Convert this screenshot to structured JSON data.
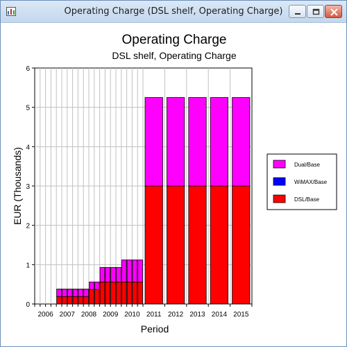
{
  "window": {
    "title": "Operating Charge (DSL shelf, Operating Charge)",
    "app_icon": "chart-app-icon",
    "buttons": [
      "minimize-icon",
      "maximize-icon",
      "close-icon"
    ]
  },
  "colors": {
    "dual": "#ff00ff",
    "wimax": "#0000ff",
    "dsl": "#ff0000",
    "grid": "#c0c0c0"
  },
  "chart_data": {
    "type": "bar",
    "stacked": true,
    "title": "Operating Charge",
    "subtitle": "DSL shelf, Operating Charge",
    "xlabel": "Period",
    "ylabel": "EUR  (Thousands)",
    "ylim": [
      0,
      6
    ],
    "yticks": [
      "0",
      "1",
      "2",
      "3",
      "4",
      "5",
      "6"
    ],
    "grid": true,
    "legend_position": "right",
    "year_labels": [
      "2006",
      "2007",
      "2008",
      "2009",
      "2010",
      "2011",
      "2012",
      "2013",
      "2014",
      "2015"
    ],
    "quarterly_periods": [
      "2006 Q1",
      "2006 Q2",
      "2006 Q3",
      "2006 Q4",
      "2007 Q1",
      "2007 Q2",
      "2007 Q3",
      "2007 Q4",
      "2008 Q1",
      "2008 Q2",
      "2008 Q3",
      "2008 Q4",
      "2009 Q1",
      "2009 Q2",
      "2009 Q3",
      "2009 Q4",
      "2010 Q1",
      "2010 Q2",
      "2010 Q3",
      "2010 Q4"
    ],
    "annual_periods": [
      "2011",
      "2012",
      "2013",
      "2014",
      "2015"
    ],
    "series": [
      {
        "name": "Dual/Base",
        "color": "#ff00ff",
        "quarterly": [
          0,
          0,
          0,
          0,
          0.19,
          0.19,
          0.19,
          0.19,
          0.19,
          0.19,
          0.19,
          0.19,
          0.37,
          0.37,
          0.37,
          0.37,
          0.56,
          0.56,
          0.56,
          0.56
        ],
        "annual": [
          2.25,
          2.25,
          2.25,
          2.25,
          2.25
        ]
      },
      {
        "name": "WiMAX/Base",
        "color": "#0000ff",
        "quarterly": [
          0,
          0,
          0,
          0,
          0,
          0,
          0,
          0,
          0,
          0,
          0,
          0,
          0,
          0,
          0,
          0,
          0,
          0,
          0,
          0
        ],
        "annual": [
          0,
          0,
          0,
          0,
          0
        ]
      },
      {
        "name": "DSL/Base",
        "color": "#ff0000",
        "quarterly": [
          0,
          0,
          0,
          0,
          0.19,
          0.19,
          0.19,
          0.19,
          0.19,
          0.19,
          0.37,
          0.37,
          0.56,
          0.56,
          0.56,
          0.56,
          0.56,
          0.56,
          0.56,
          0.56
        ],
        "annual": [
          3,
          3,
          3,
          3,
          3
        ]
      }
    ],
    "legend_order": [
      "Dual/Base",
      "WiMAX/Base",
      "DSL/Base"
    ]
  }
}
